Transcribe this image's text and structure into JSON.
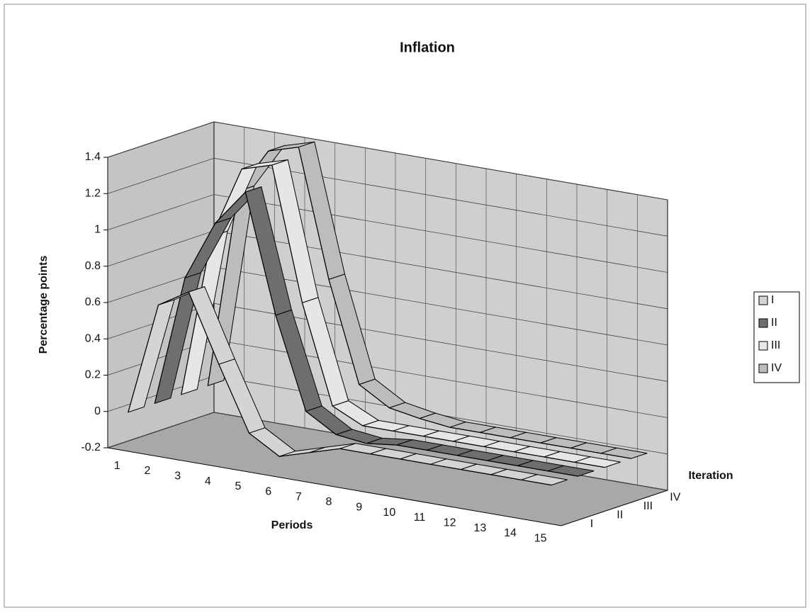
{
  "chart_data": {
    "type": "ribbon3d",
    "title": "Inflation",
    "y_label": "Percentage points",
    "x_label": "Periods",
    "z_label": "Iteration",
    "categories": [
      "1",
      "2",
      "3",
      "4",
      "5",
      "6",
      "7",
      "8",
      "9",
      "10",
      "11",
      "12",
      "13",
      "14",
      "15"
    ],
    "series": [
      {
        "name": "I",
        "color": "#d4d4d4",
        "values": [
          0,
          0.62,
          0.72,
          0.35,
          0,
          -0.1,
          -0.05,
          0,
          0,
          0,
          0,
          0,
          0,
          0,
          0
        ]
      },
      {
        "name": "II",
        "color": "#6e6e6e",
        "values": [
          0,
          0.72,
          1.05,
          1.25,
          0.6,
          0.1,
          0,
          -0.02,
          0,
          0,
          0,
          0,
          0,
          0,
          0
        ]
      },
      {
        "name": "III",
        "color": "#e6e6e6",
        "values": [
          0,
          0.9,
          1.3,
          1.35,
          0.62,
          0.08,
          0,
          0,
          0,
          0,
          0,
          0,
          0,
          0,
          0
        ]
      },
      {
        "name": "IV",
        "color": "#bcbcbc",
        "values": [
          0,
          1.1,
          1.35,
          1.4,
          0.7,
          0.15,
          0.05,
          0.02,
          0,
          0,
          0,
          0,
          0,
          0,
          0
        ]
      }
    ],
    "ylim": [
      -0.2,
      1.4
    ],
    "yticks": [
      -0.2,
      0,
      0.2,
      0.4,
      0.6,
      0.8,
      1,
      1.2,
      1.4
    ],
    "grid": true,
    "legend": "right"
  }
}
